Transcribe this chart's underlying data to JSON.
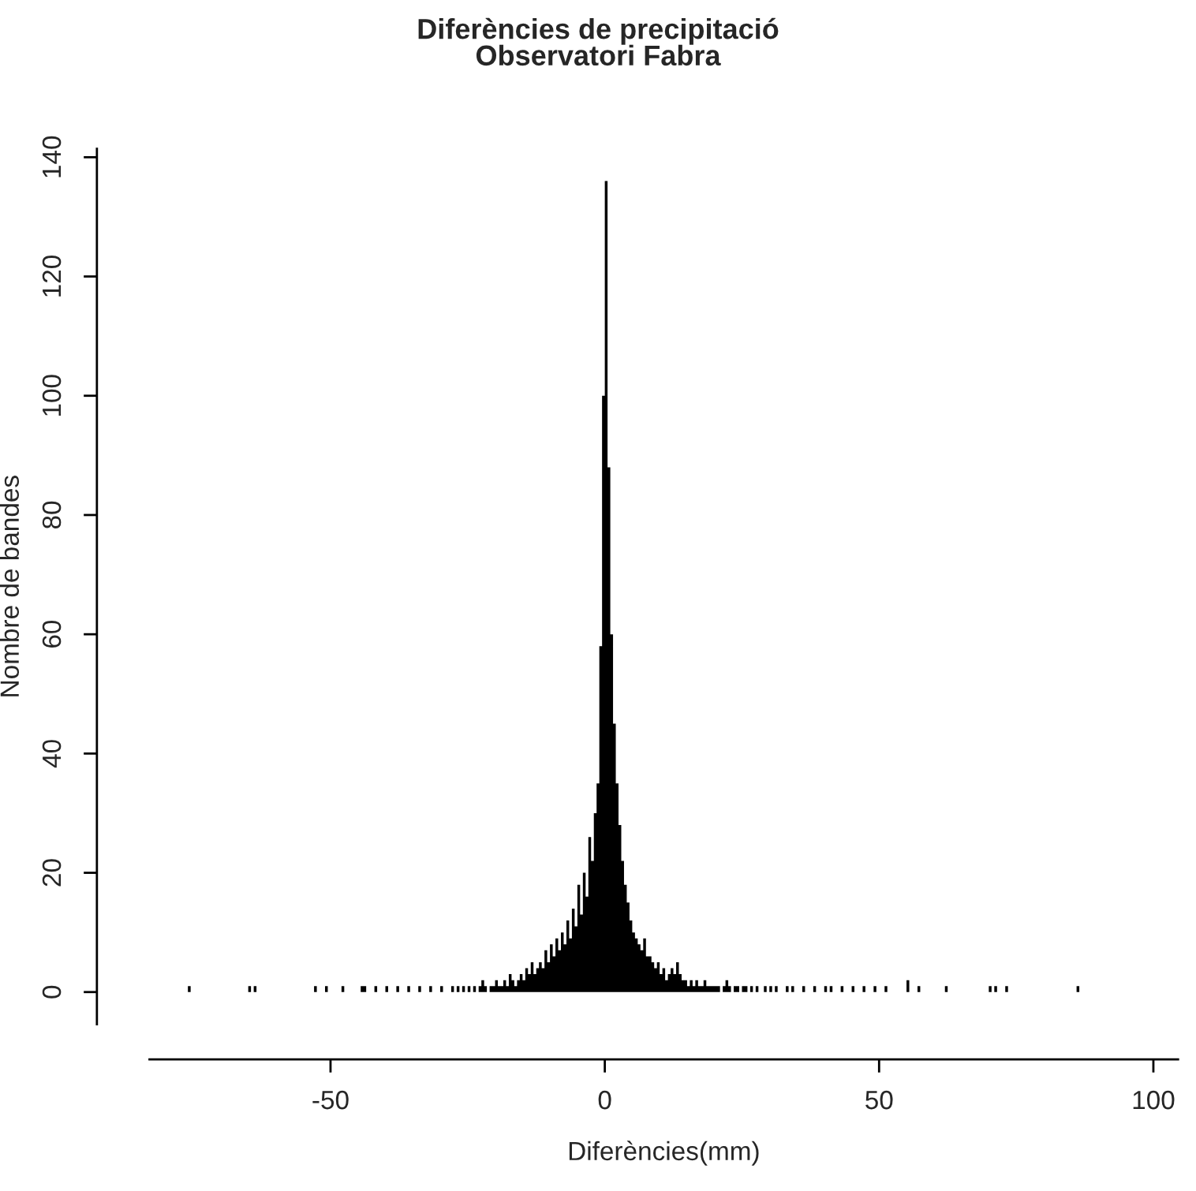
{
  "chart_data": {
    "type": "histogram",
    "title": "Diferències de precipitació\nObservatori Fabra",
    "xlabel": "Diferències(mm)",
    "ylabel": "Nombre de bandes",
    "bins": [
      -76,
      -75.5,
      -65,
      -64.5,
      -64,
      -63.5,
      -53,
      -52.5,
      -51,
      -50.5,
      -48,
      -47.5,
      -44.5,
      -44,
      -43.5,
      -42,
      -41.5,
      -40,
      -39.5,
      -38,
      -37.5,
      -36,
      -35.5,
      -34,
      -33.5,
      -32,
      -31.5,
      -30,
      -29.5,
      -28,
      -27.5,
      -27,
      -26.5,
      -26,
      -25.5,
      -25,
      -24.5,
      -24,
      -23.5,
      -23,
      -22.5,
      -22,
      -21.5,
      -21,
      -20.5,
      -20,
      -19.5,
      -19,
      -18.5,
      -18,
      -17.5,
      -17,
      -16.5,
      -16,
      -15.5,
      -15,
      -14.5,
      -14,
      -13.5,
      -13,
      -12.5,
      -12,
      -11.5,
      -11,
      -10.5,
      -10,
      -9.5,
      -9,
      -8.5,
      -8,
      -7.5,
      -7,
      -6.5,
      -6,
      -5.5,
      -5,
      -4.5,
      -4,
      -3.5,
      -3,
      -2.5,
      -2,
      -1.5,
      -1,
      -0.5,
      0,
      0.5,
      1,
      1.5,
      2,
      2.5,
      3,
      3.5,
      4,
      4.5,
      5,
      5.5,
      6,
      6.5,
      7,
      7.5,
      8,
      8.5,
      9,
      9.5,
      10,
      10.5,
      11,
      11.5,
      12,
      12.5,
      13,
      13.5,
      14,
      14.5,
      15,
      15.5,
      16,
      16.5,
      17,
      17.5,
      18,
      18.5,
      19,
      19.5,
      20,
      20.5,
      21,
      21.5,
      22,
      22.5,
      23,
      23.5,
      24,
      24.5,
      25,
      25.5,
      26,
      26.5,
      27,
      27.5,
      28,
      29,
      29.5,
      30,
      30.5,
      31,
      31.5,
      33,
      33.5,
      34,
      34.5,
      36,
      36.5,
      38,
      38.5,
      40,
      40.5,
      41,
      41.5,
      43,
      43.5,
      45,
      45.5,
      47,
      47.5,
      49,
      49.5,
      51,
      51.5,
      55,
      55.5,
      57,
      57.5,
      62,
      62.5,
      70,
      70.5,
      71,
      71.5,
      73,
      73.5,
      86,
      86.5,
      97.5
    ],
    "values": [
      1,
      0,
      1,
      0,
      1,
      0,
      1,
      0,
      1,
      0,
      1,
      0,
      1,
      1,
      0,
      1,
      0,
      1,
      0,
      1,
      0,
      1,
      0,
      1,
      0,
      1,
      0,
      1,
      0,
      1,
      0,
      1,
      0,
      1,
      0,
      1,
      0,
      1,
      0,
      1,
      2,
      1,
      0,
      1,
      1,
      2,
      1,
      1,
      2,
      1,
      3,
      2,
      1,
      2,
      3,
      2,
      4,
      3,
      5,
      3,
      4,
      5,
      4,
      7,
      5,
      8,
      6,
      9,
      7,
      10,
      8,
      12,
      9,
      14,
      11,
      18,
      13,
      20,
      16,
      26,
      22,
      30,
      35,
      58,
      100,
      136,
      88,
      60,
      45,
      35,
      28,
      22,
      18,
      15,
      12,
      10,
      9,
      8,
      7,
      9,
      6,
      6,
      5,
      4,
      5,
      3,
      4,
      2,
      3,
      4,
      3,
      5,
      3,
      2,
      2,
      1,
      2,
      1,
      2,
      1,
      1,
      2,
      1,
      1,
      1,
      1,
      1,
      0,
      1,
      2,
      1,
      0,
      1,
      1,
      0,
      1,
      1,
      0,
      1,
      0,
      1,
      0,
      1,
      0,
      1,
      0,
      1,
      0,
      1,
      0,
      1,
      0,
      1,
      0,
      1,
      0,
      1,
      0,
      1,
      0,
      1,
      0,
      1,
      0,
      1,
      0,
      1,
      0,
      1,
      0,
      2,
      0,
      1,
      0,
      1,
      0,
      1,
      0,
      1,
      0,
      1,
      0,
      1,
      0
    ],
    "color": "#000000",
    "xlim": [
      -83,
      104.5
    ],
    "xticks": [
      {
        "value": -50,
        "label": "-50"
      },
      0,
      50,
      100
    ],
    "ylim": [
      -5.4,
      141.4
    ],
    "yticks": [
      0,
      20,
      40,
      60,
      80,
      100,
      120,
      140
    ],
    "grid": false
  }
}
